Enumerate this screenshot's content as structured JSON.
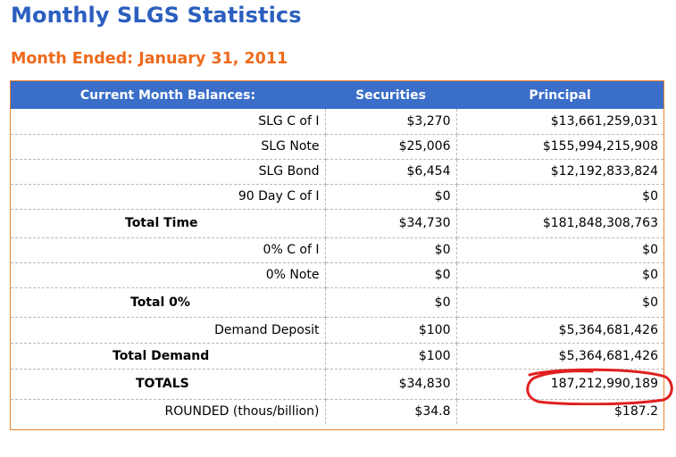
{
  "page": {
    "title": "Monthly SLGS Statistics",
    "subtitle": "Month Ended: January 31, 2011"
  },
  "table": {
    "headers": [
      "Current Month Balances:",
      "Securities",
      "Principal"
    ],
    "rows": [
      {
        "label": "SLG C of I",
        "securities": "$3,270",
        "principal": "$13,661,259,031",
        "bold": false
      },
      {
        "label": "SLG Note",
        "securities": "$25,006",
        "principal": "$155,994,215,908",
        "bold": false
      },
      {
        "label": "SLG Bond",
        "securities": "$6,454",
        "principal": "$12,192,833,824",
        "bold": false
      },
      {
        "label": "90 Day C of I",
        "securities": "$0",
        "principal": "$0",
        "bold": false
      },
      {
        "label": "Total Time",
        "securities": "$34,730",
        "principal": "$181,848,308,763",
        "bold": true
      },
      {
        "label": "0% C of I",
        "securities": "$0",
        "principal": "$0",
        "bold": false
      },
      {
        "label": "0% Note",
        "securities": "$0",
        "principal": "$0",
        "bold": false
      },
      {
        "label": "Total 0%",
        "securities": "$0",
        "principal": "$0",
        "bold": true
      },
      {
        "label": "Demand Deposit",
        "securities": "$100",
        "principal": "$5,364,681,426",
        "bold": false
      },
      {
        "label": "Total Demand",
        "securities": "$100",
        "principal": "$5,364,681,426",
        "bold": true
      },
      {
        "label": "TOTALS",
        "securities": "$34,830",
        "principal": "187,212,990,189",
        "bold": true
      },
      {
        "label": "ROUNDED (thous/billion)",
        "securities": "$34.8",
        "principal": "$187.2",
        "bold": false
      }
    ]
  },
  "colors": {
    "title": "#2b5fbf",
    "subtitle": "#ee6a1c",
    "header_bg": "#3a6ec9",
    "table_border": "#e8842f",
    "annotation": "#e02020"
  }
}
